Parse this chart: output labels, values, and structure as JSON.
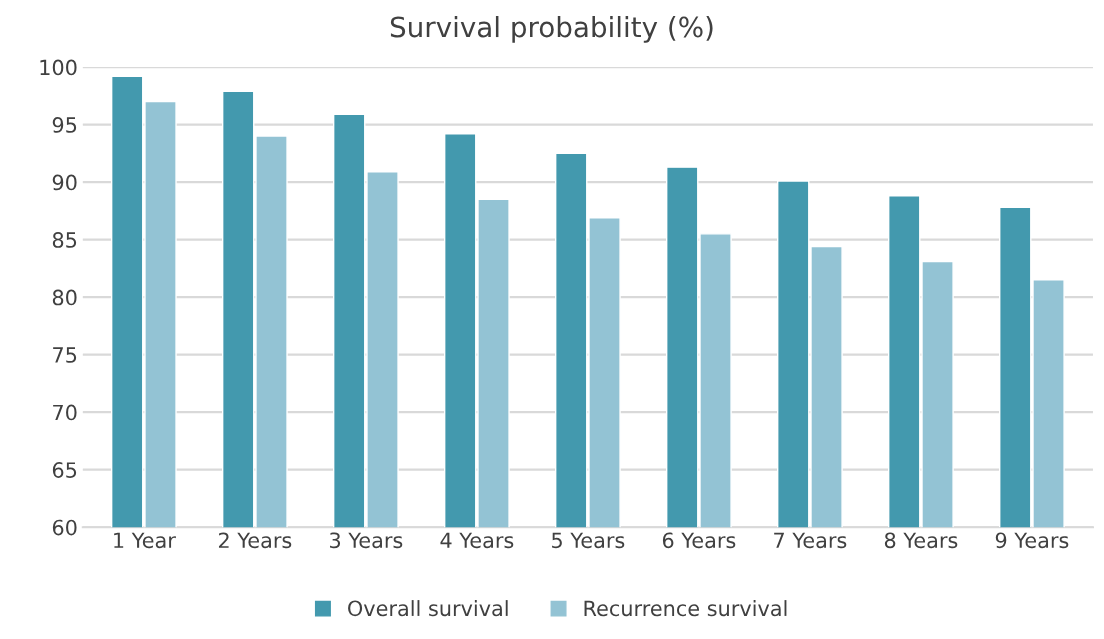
{
  "chart_data": {
    "type": "bar",
    "title": "Survival probability (%)",
    "categories": [
      "1 Year",
      "2 Years",
      "3 Years",
      "4 Years",
      "5 Years",
      "6 Years",
      "7 Years",
      "8 Years",
      "9 Years"
    ],
    "series": [
      {
        "name": "Overall survival",
        "color": "#4399ae",
        "values": [
          99.2,
          97.9,
          95.9,
          94.2,
          92.5,
          91.3,
          90.1,
          88.8,
          87.8
        ]
      },
      {
        "name": "Recurrence survival",
        "color": "#93c3d4",
        "values": [
          97.0,
          94.0,
          90.9,
          88.5,
          86.9,
          85.5,
          84.4,
          83.1,
          81.5
        ]
      }
    ],
    "ylim": [
      60,
      100
    ],
    "yticks": [
      60,
      65,
      70,
      75,
      80,
      85,
      90,
      95,
      100
    ],
    "grid": "y",
    "legend": "bottom"
  }
}
